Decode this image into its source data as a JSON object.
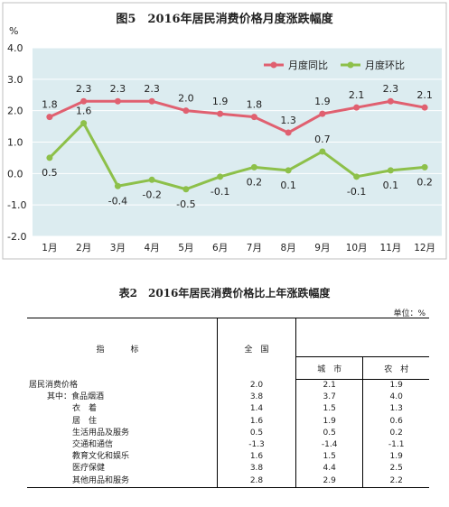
{
  "chart_data": {
    "type": "line",
    "title": "图5　2016年居民消费价格月度涨跌幅度",
    "ylabel": "%",
    "ylim": [
      -2.0,
      4.0
    ],
    "yticks": [
      "4.0",
      "3.0",
      "2.0",
      "1.0",
      "0.0",
      "-1.0",
      "-2.0"
    ],
    "categories": [
      "1月",
      "2月",
      "3月",
      "4月",
      "5月",
      "6月",
      "7月",
      "8月",
      "9月",
      "10月",
      "11月",
      "12月"
    ],
    "series": [
      {
        "name": "月度同比",
        "color": "#e06070",
        "values": [
          1.8,
          2.3,
          2.3,
          2.3,
          2.0,
          1.9,
          1.8,
          1.3,
          1.9,
          2.1,
          2.3,
          2.1
        ],
        "labels": [
          "1.8",
          "2.3",
          "2.3",
          "2.3",
          "2.0",
          "1.9",
          "1.8",
          "1.3",
          "1.9",
          "2.1",
          "2.3",
          "2.1"
        ]
      },
      {
        "name": "月度环比",
        "color": "#8dc04a",
        "values": [
          0.5,
          1.6,
          -0.4,
          -0.2,
          -0.5,
          -0.1,
          0.2,
          0.1,
          0.7,
          -0.1,
          0.1,
          0.2
        ],
        "labels": [
          "0.5",
          "1.6",
          "-0.4",
          "-0.2",
          "-0.5",
          "-0.1",
          "0.2",
          "0.1",
          "0.7",
          "-0.1",
          "0.1",
          "0.2"
        ]
      }
    ],
    "grid": true,
    "legend_position": "top-right",
    "plot_background": "#dcecf0"
  },
  "table": {
    "title": "表2　2016年居民消费价格比上年涨跌幅度",
    "unit": "单位：%",
    "headers": {
      "indicator": "指　标",
      "national": "全　国",
      "city": "城　市",
      "rural": "农　村"
    },
    "rows": [
      {
        "label": "居民消费价格",
        "indent": 0,
        "national": "2.0",
        "city": "2.1",
        "rural": "1.9"
      },
      {
        "label": "其中：食品烟酒",
        "indent": 1,
        "national": "3.8",
        "city": "3.7",
        "rural": "4.0"
      },
      {
        "label": "衣　着",
        "indent": 2,
        "national": "1.4",
        "city": "1.5",
        "rural": "1.3"
      },
      {
        "label": "居　住",
        "indent": 2,
        "national": "1.6",
        "city": "1.9",
        "rural": "0.6"
      },
      {
        "label": "生活用品及服务",
        "indent": 2,
        "national": "0.5",
        "city": "0.5",
        "rural": "0.2"
      },
      {
        "label": "交通和通信",
        "indent": 2,
        "national": "-1.3",
        "city": "-1.4",
        "rural": "-1.1"
      },
      {
        "label": "教育文化和娱乐",
        "indent": 2,
        "national": "1.6",
        "city": "1.5",
        "rural": "1.9"
      },
      {
        "label": "医疗保健",
        "indent": 2,
        "national": "3.8",
        "city": "4.4",
        "rural": "2.5"
      },
      {
        "label": "其他用品和服务",
        "indent": 2,
        "national": "2.8",
        "city": "2.9",
        "rural": "2.2"
      }
    ]
  }
}
